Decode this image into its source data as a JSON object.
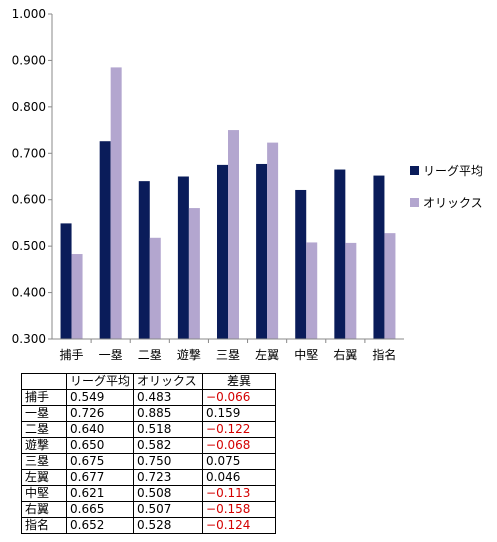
{
  "chart_data": {
    "type": "bar",
    "title": "",
    "xlabel": "",
    "ylabel": "",
    "ylim": [
      0.3,
      1.0
    ],
    "ytick_step": 0.1,
    "grid": false,
    "legend_position": "right",
    "categories": [
      "捕手",
      "一塁",
      "二塁",
      "遊撃",
      "三塁",
      "左翼",
      "中堅",
      "右翼",
      "指名"
    ],
    "series": [
      {
        "name": "リーグ平均",
        "color": "#0a1c5a",
        "values": [
          0.549,
          0.726,
          0.64,
          0.65,
          0.675,
          0.677,
          0.621,
          0.665,
          0.652
        ]
      },
      {
        "name": "オリックス",
        "color": "#b3a6cf",
        "values": [
          0.483,
          0.885,
          0.518,
          0.582,
          0.75,
          0.723,
          0.508,
          0.507,
          0.528
        ]
      }
    ]
  },
  "table": {
    "headers": [
      "",
      "リーグ平均",
      "オリックス",
      "差異"
    ],
    "rows": [
      {
        "label": "捕手",
        "league": "0.549",
        "orix": "0.483",
        "diff": "−0.066",
        "negative": true
      },
      {
        "label": "一塁",
        "league": "0.726",
        "orix": "0.885",
        "diff": "0.159",
        "negative": false
      },
      {
        "label": "二塁",
        "league": "0.640",
        "orix": "0.518",
        "diff": "−0.122",
        "negative": true
      },
      {
        "label": "遊撃",
        "league": "0.650",
        "orix": "0.582",
        "diff": "−0.068",
        "negative": true
      },
      {
        "label": "三塁",
        "league": "0.675",
        "orix": "0.750",
        "diff": "0.075",
        "negative": false
      },
      {
        "label": "左翼",
        "league": "0.677",
        "orix": "0.723",
        "diff": "0.046",
        "negative": false
      },
      {
        "label": "中堅",
        "league": "0.621",
        "orix": "0.508",
        "diff": "−0.113",
        "negative": true
      },
      {
        "label": "右翼",
        "league": "0.665",
        "orix": "0.507",
        "diff": "−0.158",
        "negative": true
      },
      {
        "label": "指名",
        "league": "0.652",
        "orix": "0.528",
        "diff": "−0.124",
        "negative": true
      }
    ]
  }
}
